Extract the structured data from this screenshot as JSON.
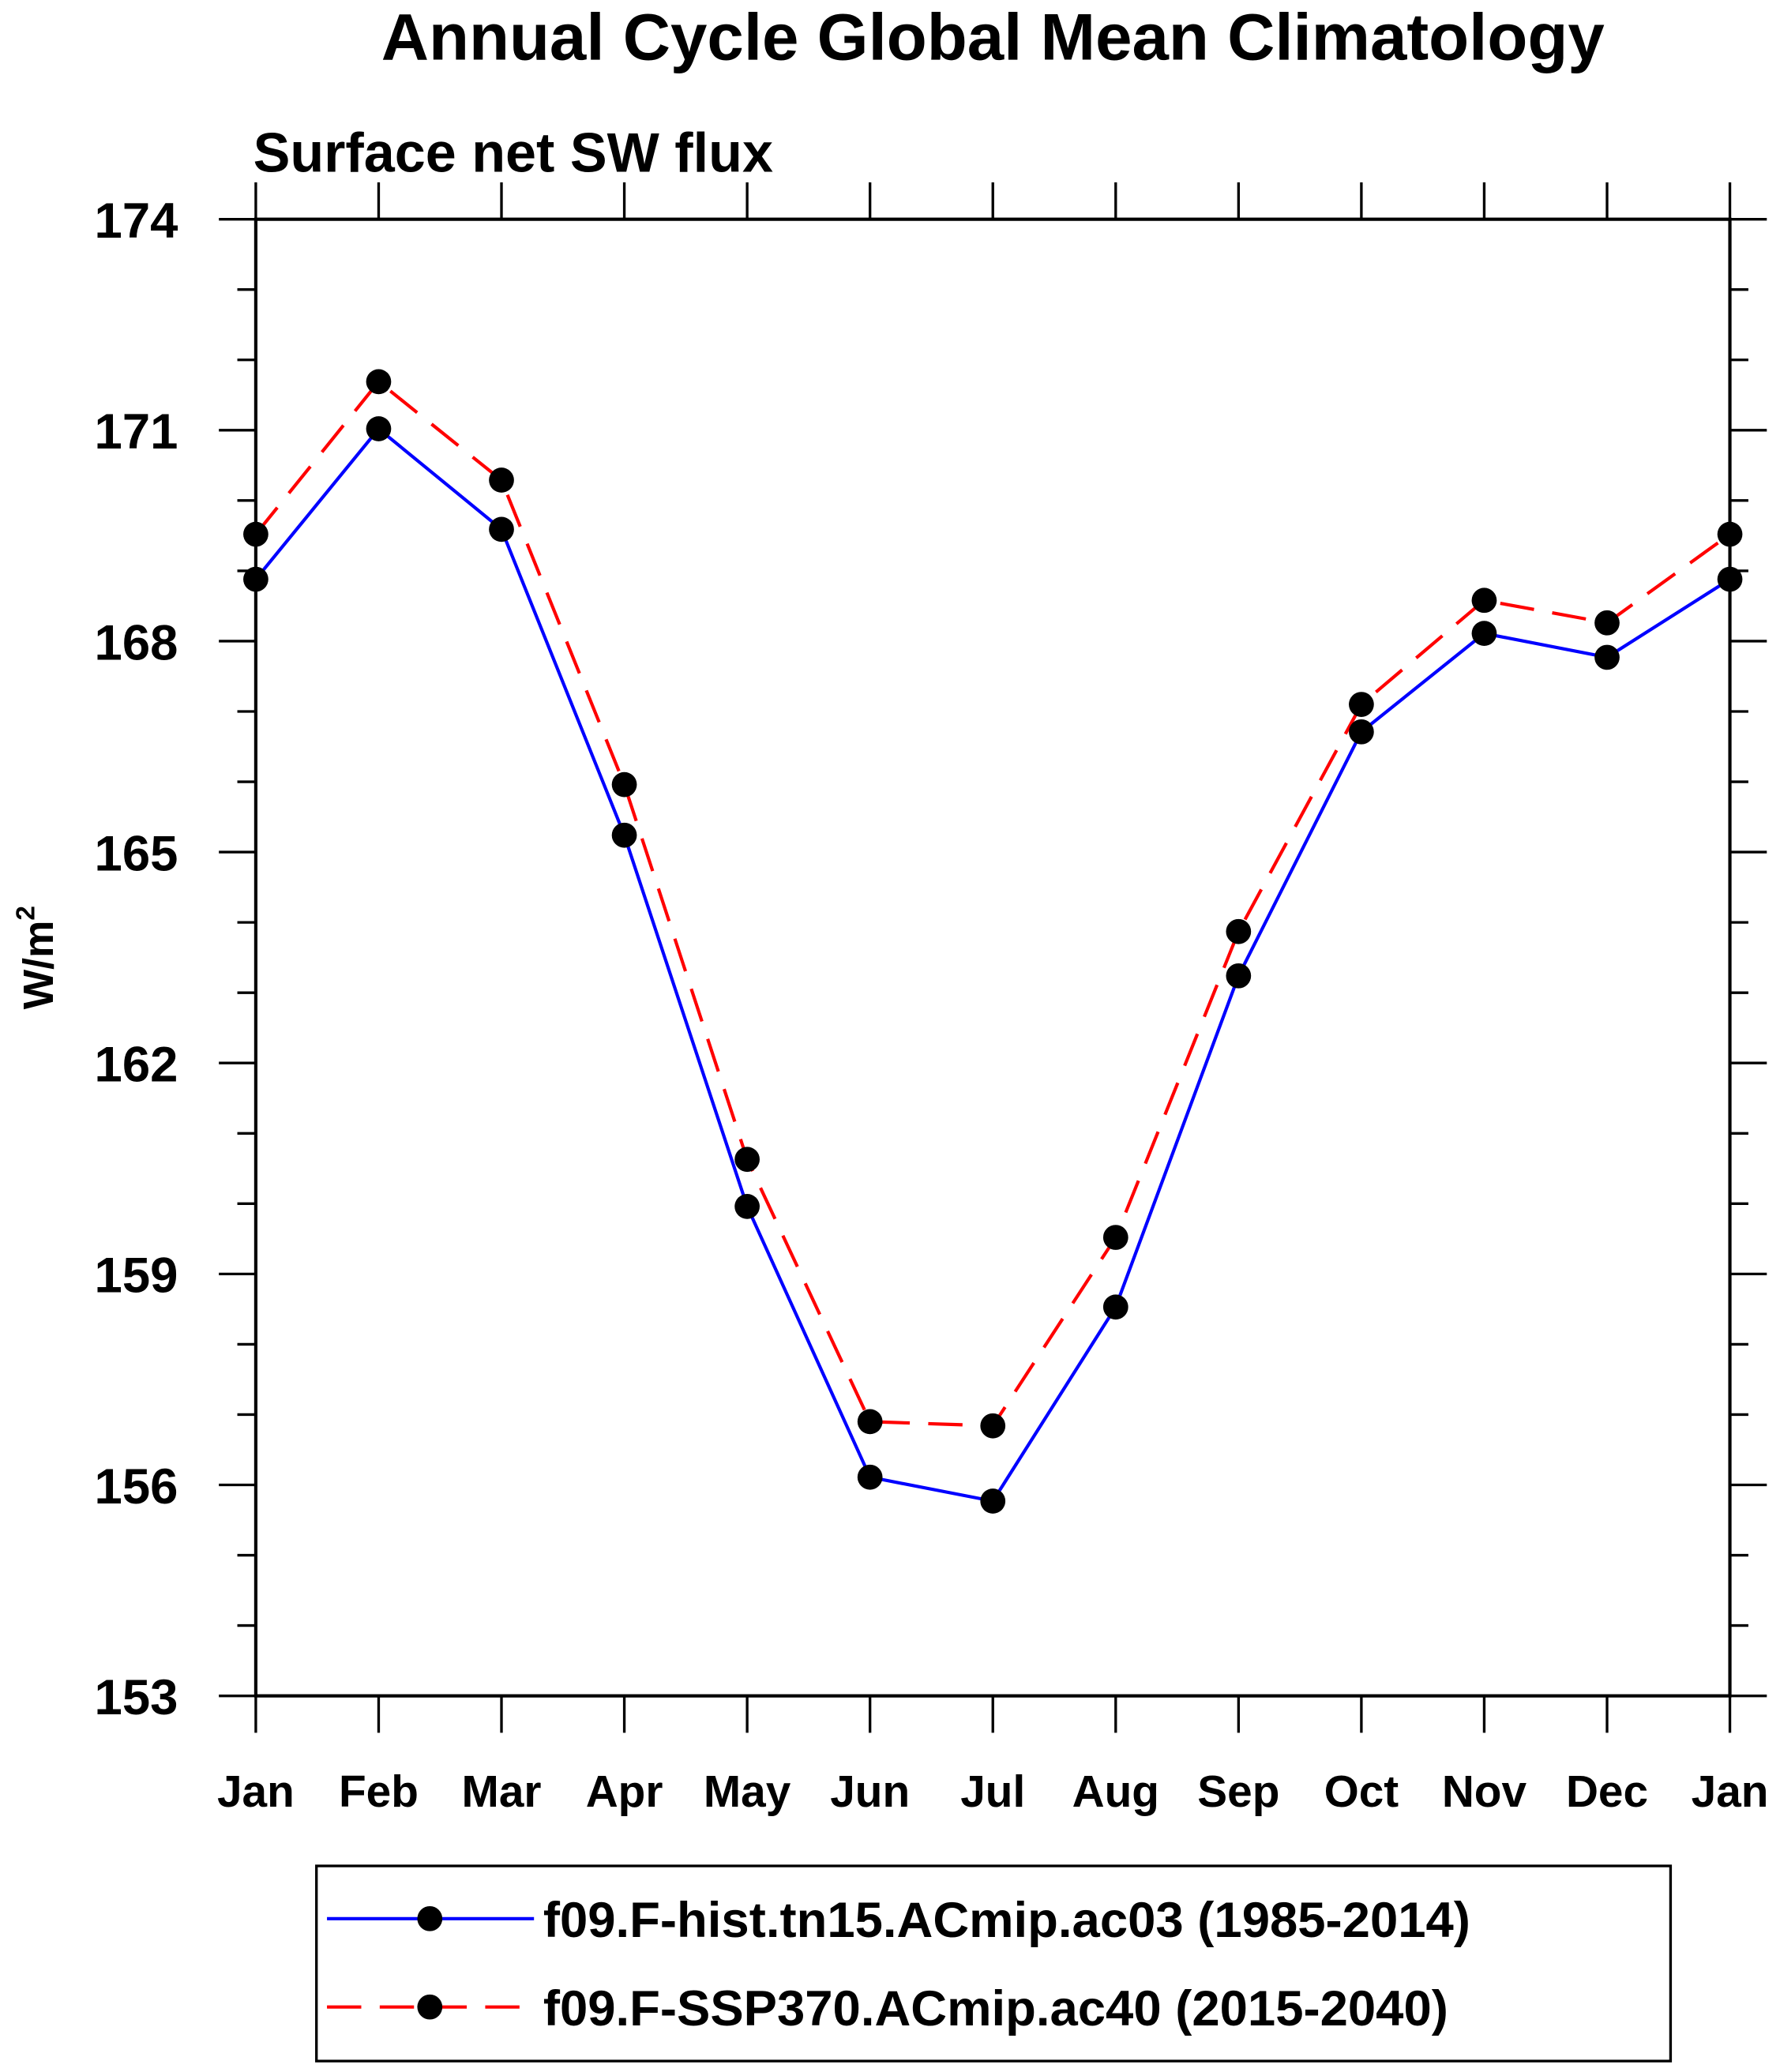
{
  "chart_data": {
    "type": "line",
    "title": "Annual Cycle Global Mean Climatology",
    "subtitle": "Surface net SW flux",
    "ylabel": "W/m",
    "ylabel_superscript": "2",
    "xlabel": "",
    "categories": [
      "Jan",
      "Feb",
      "Mar",
      "Apr",
      "May",
      "Jun",
      "Jul",
      "Aug",
      "Sep",
      "Oct",
      "Nov",
      "Dec",
      "Jan"
    ],
    "ylim": [
      153,
      174
    ],
    "yticks": [
      153,
      156,
      159,
      162,
      165,
      168,
      171,
      174
    ],
    "y_minor_step": 1,
    "grid": false,
    "legend_position": "bottom",
    "series": [
      {
        "name": "f09.F-hist.tn15.ACmip.ac03 (1985-2014)",
        "color": "#0000ff",
        "dash": "solid",
        "values": [
          168.88,
          171.02,
          169.59,
          165.24,
          159.96,
          156.11,
          155.77,
          158.53,
          163.24,
          166.71,
          168.11,
          167.77,
          168.88
        ]
      },
      {
        "name": "f09.F-SSP370.ACmip.ac40 (2015-2040)",
        "color": "#ff0000",
        "dash": "dashed",
        "values": [
          169.52,
          171.69,
          170.29,
          165.96,
          160.63,
          156.9,
          156.84,
          159.52,
          163.87,
          167.1,
          168.58,
          168.26,
          169.52
        ]
      }
    ],
    "marker_color": "#000000"
  }
}
